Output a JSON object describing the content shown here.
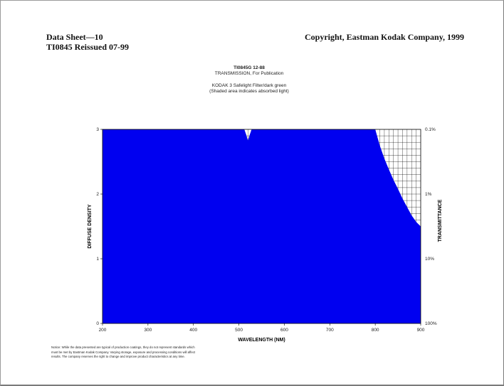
{
  "header": {
    "left_line1": "Data Sheet—10",
    "left_line2": "TI0845 Reissued 07-99",
    "right": "Copyright, Eastman Kodak Company, 1999"
  },
  "chart_heading": {
    "code": "TI0845G 12-88",
    "label": "TRANSMISSION, For Publication",
    "filter": "KODAK 3 Safelight Filter/dark green",
    "note": "(Shaded area indicates absorbed light)"
  },
  "notice_lines": [
    "Notice: While the data presented are typical of production coatings, they do not represent standards which",
    "must be met by Eastman Kodak Company. Varying storage, exposure and processing conditions will affect",
    "results. The company reserves the right to change and improve product characteristics at any time."
  ],
  "chart_data": {
    "type": "area",
    "xlabel": "WAVELENGTH (NM)",
    "ylabel": "DIFFUSE DENSITY",
    "y2label": "TRANSMITTANCE",
    "xlim": [
      200,
      900
    ],
    "ylim": [
      0,
      3
    ],
    "x_ticks": [
      "200",
      "300",
      "400",
      "500",
      "600",
      "700",
      "800",
      "900"
    ],
    "y_ticks": [
      "0",
      "1",
      "2",
      "3"
    ],
    "y2_ticks": [
      "100%",
      "10%",
      "1%",
      "0.1%"
    ],
    "fill_color": "#0000f0",
    "series": [
      {
        "x": [
          200,
          512,
          516,
          519,
          520,
          521,
          524,
          528,
          800,
          810,
          820,
          830,
          840,
          850,
          860,
          870,
          880,
          890,
          900
        ],
        "y": [
          3.0,
          3.0,
          2.92,
          2.85,
          2.83,
          2.85,
          2.92,
          3.0,
          3.0,
          2.75,
          2.55,
          2.38,
          2.22,
          2.08,
          1.93,
          1.8,
          1.67,
          1.57,
          1.5
        ]
      }
    ]
  }
}
